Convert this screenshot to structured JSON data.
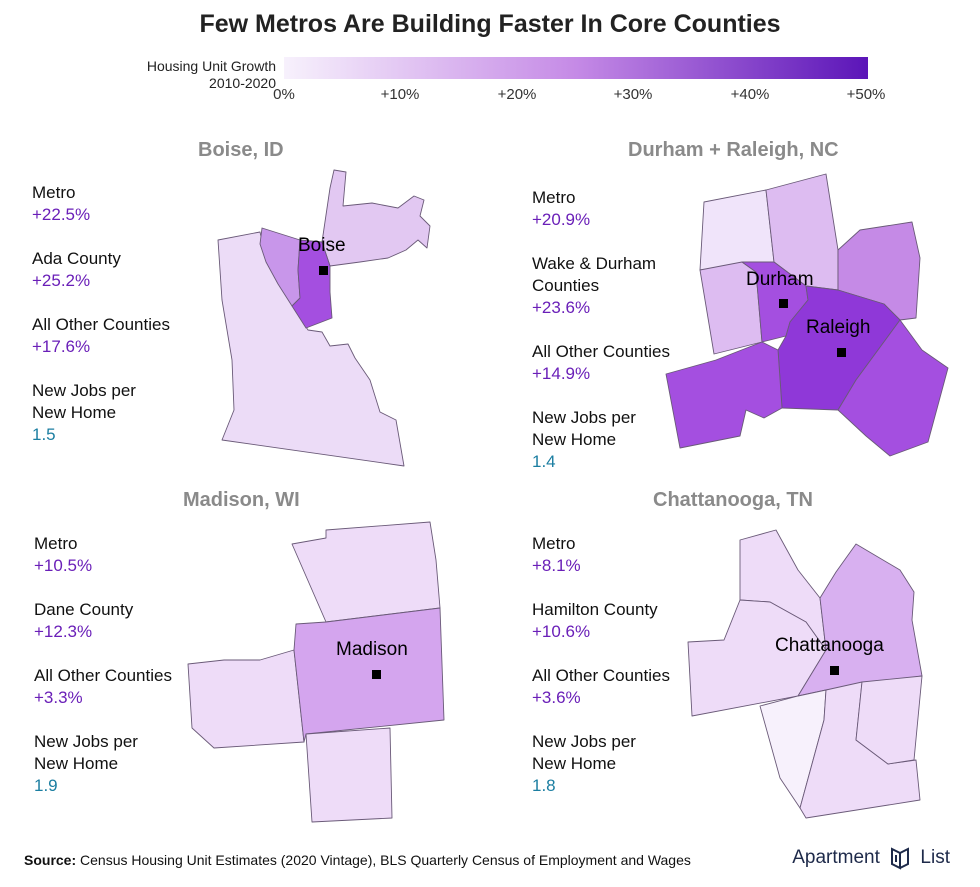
{
  "title": "Few Metros Are Building Faster In Core Counties",
  "legend": {
    "label_lines": [
      "Housing Unit Growth",
      "2010-2020"
    ],
    "ticks": [
      "0%",
      "+10%",
      "+20%",
      "+30%",
      "+40%",
      "+50%"
    ],
    "color_low": "#f7f1fc",
    "color_high": "#5b15b8"
  },
  "panels": [
    {
      "id": "boise",
      "title": "Boise, ID",
      "city_labels": [
        "Boise"
      ],
      "stats": [
        {
          "label_lines": [
            "Metro"
          ],
          "value": "+22.5%"
        },
        {
          "label_lines": [
            "Ada County"
          ],
          "value": "+25.2%"
        },
        {
          "label_lines": [
            "All Other Counties"
          ],
          "value": "+17.6%"
        },
        {
          "label_lines": [
            "New Jobs per",
            "New Home"
          ],
          "value": "1.5"
        }
      ]
    },
    {
      "id": "durham",
      "title": "Durham + Raleigh, NC",
      "city_labels": [
        "Durham",
        "Raleigh"
      ],
      "stats": [
        {
          "label_lines": [
            "Metro"
          ],
          "value": "+20.9%"
        },
        {
          "label_lines": [
            "Wake & Durham",
            "Counties"
          ],
          "value": "+23.6%"
        },
        {
          "label_lines": [
            "All Other Counties"
          ],
          "value": "+14.9%"
        },
        {
          "label_lines": [
            "New Jobs per",
            "New Home"
          ],
          "value": "1.4"
        }
      ]
    },
    {
      "id": "madison",
      "title": "Madison, WI",
      "city_labels": [
        "Madison"
      ],
      "stats": [
        {
          "label_lines": [
            "Metro"
          ],
          "value": "+10.5%"
        },
        {
          "label_lines": [
            "Dane County"
          ],
          "value": "+12.3%"
        },
        {
          "label_lines": [
            "All Other Counties"
          ],
          "value": "+3.3%"
        },
        {
          "label_lines": [
            "New Jobs per",
            "New Home"
          ],
          "value": "1.9"
        }
      ]
    },
    {
      "id": "chattanooga",
      "title": "Chattanooga, TN",
      "city_labels": [
        "Chattanooga"
      ],
      "stats": [
        {
          "label_lines": [
            "Metro"
          ],
          "value": "+8.1%"
        },
        {
          "label_lines": [
            "Hamilton County"
          ],
          "value": "+10.6%"
        },
        {
          "label_lines": [
            "All Other Counties"
          ],
          "value": "+3.6%"
        },
        {
          "label_lines": [
            "New Jobs per",
            "New Home"
          ],
          "value": "1.8"
        }
      ]
    }
  ],
  "footer": {
    "source_label": "Source:",
    "source_text": " Census Housing Unit Estimates (2020 Vintage), BLS Quarterly Census of Employment and Wages"
  },
  "logo": {
    "word1": "Apartment",
    "word2": "List"
  }
}
